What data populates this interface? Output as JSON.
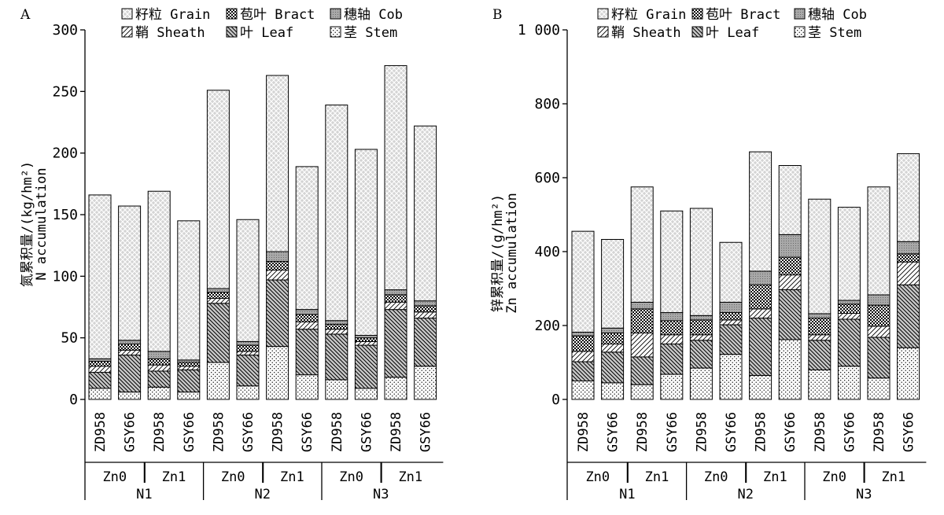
{
  "chart_data": [
    {
      "type": "stacked-bar",
      "panel_label": "A",
      "ylabel": [
        "氮累积量/(kg/hm²)",
        "N accumulation"
      ],
      "ylim": [
        0,
        300
      ],
      "yticks": [
        0,
        50,
        100,
        150,
        200,
        250,
        300
      ],
      "ytick_labels": [
        "0",
        "50",
        "100",
        "150",
        "200",
        "250",
        "300"
      ],
      "categories": [
        "ZD958",
        "GSY66",
        "ZD958",
        "GSY66",
        "ZD958",
        "GSY66",
        "ZD958",
        "GSY66",
        "ZD958",
        "GSY66",
        "ZD958",
        "GSY66"
      ],
      "zn_groups": [
        "Zn0",
        "Zn1",
        "Zn0",
        "Zn1",
        "Zn0",
        "Zn1"
      ],
      "n_groups": [
        "N1",
        "N2",
        "N3"
      ],
      "series": [
        {
          "name": "茎 Stem",
          "values": [
            9,
            6,
            10,
            6,
            30,
            11,
            43,
            20,
            16,
            9,
            18,
            27
          ]
        },
        {
          "name": "叶 Leaf",
          "values": [
            13,
            30,
            13,
            18,
            48,
            25,
            54,
            37,
            37,
            35,
            55,
            39
          ]
        },
        {
          "name": "鞘 Sheath",
          "values": [
            5,
            4,
            5,
            3,
            4,
            3,
            8,
            6,
            4,
            3,
            6,
            5
          ]
        },
        {
          "name": "苞叶 Bract",
          "values": [
            4,
            5,
            5,
            3,
            5,
            5,
            7,
            6,
            4,
            3,
            6,
            5
          ]
        },
        {
          "name": "穗轴 Cob",
          "values": [
            2,
            3,
            6,
            2,
            3,
            3,
            8,
            4,
            3,
            2,
            4,
            4
          ]
        },
        {
          "name": "籽粒 Grain",
          "values": [
            133,
            109,
            130,
            113,
            161,
            99,
            143,
            116,
            175,
            151,
            182,
            142
          ]
        }
      ]
    },
    {
      "type": "stacked-bar",
      "panel_label": "B",
      "ylabel": [
        "锌累积量/(g/hm²)",
        "Zn accumulation"
      ],
      "ylim": [
        0,
        1000
      ],
      "yticks": [
        0,
        200,
        400,
        600,
        800,
        1000
      ],
      "ytick_labels": [
        "0",
        "200",
        "400",
        "600",
        "800",
        "1 000"
      ],
      "categories": [
        "ZD958",
        "GSY66",
        "ZD958",
        "GSY66",
        "ZD958",
        "GSY66",
        "ZD958",
        "GSY66",
        "ZD958",
        "GSY66",
        "ZD958",
        "GSY66"
      ],
      "zn_groups": [
        "Zn0",
        "Zn1",
        "Zn0",
        "Zn1",
        "Zn0",
        "Zn1"
      ],
      "n_groups": [
        "N1",
        "N2",
        "N3"
      ],
      "series": [
        {
          "name": "茎 Stem",
          "values": [
            50,
            45,
            40,
            68,
            85,
            122,
            65,
            162,
            80,
            90,
            58,
            140
          ]
        },
        {
          "name": "叶 Leaf",
          "values": [
            52,
            83,
            75,
            82,
            75,
            80,
            155,
            135,
            80,
            127,
            110,
            170
          ]
        },
        {
          "name": "鞘 Sheath",
          "values": [
            28,
            22,
            65,
            25,
            15,
            13,
            25,
            40,
            15,
            16,
            30,
            62
          ]
        },
        {
          "name": "苞叶 Bract",
          "values": [
            42,
            30,
            65,
            38,
            40,
            20,
            65,
            48,
            45,
            25,
            57,
            22
          ]
        },
        {
          "name": "穗轴 Cob",
          "values": [
            10,
            13,
            18,
            22,
            12,
            28,
            37,
            61,
            12,
            10,
            28,
            33
          ]
        },
        {
          "name": "籽粒 Grain",
          "values": [
            273,
            240,
            312,
            275,
            290,
            162,
            323,
            187,
            310,
            252,
            292,
            238
          ]
        }
      ]
    }
  ],
  "legend_order": [
    "籽粒 Grain",
    "苞叶 Bract",
    "穗轴 Cob",
    "鞘 Sheath",
    "叶 Leaf",
    "茎 Stem"
  ]
}
